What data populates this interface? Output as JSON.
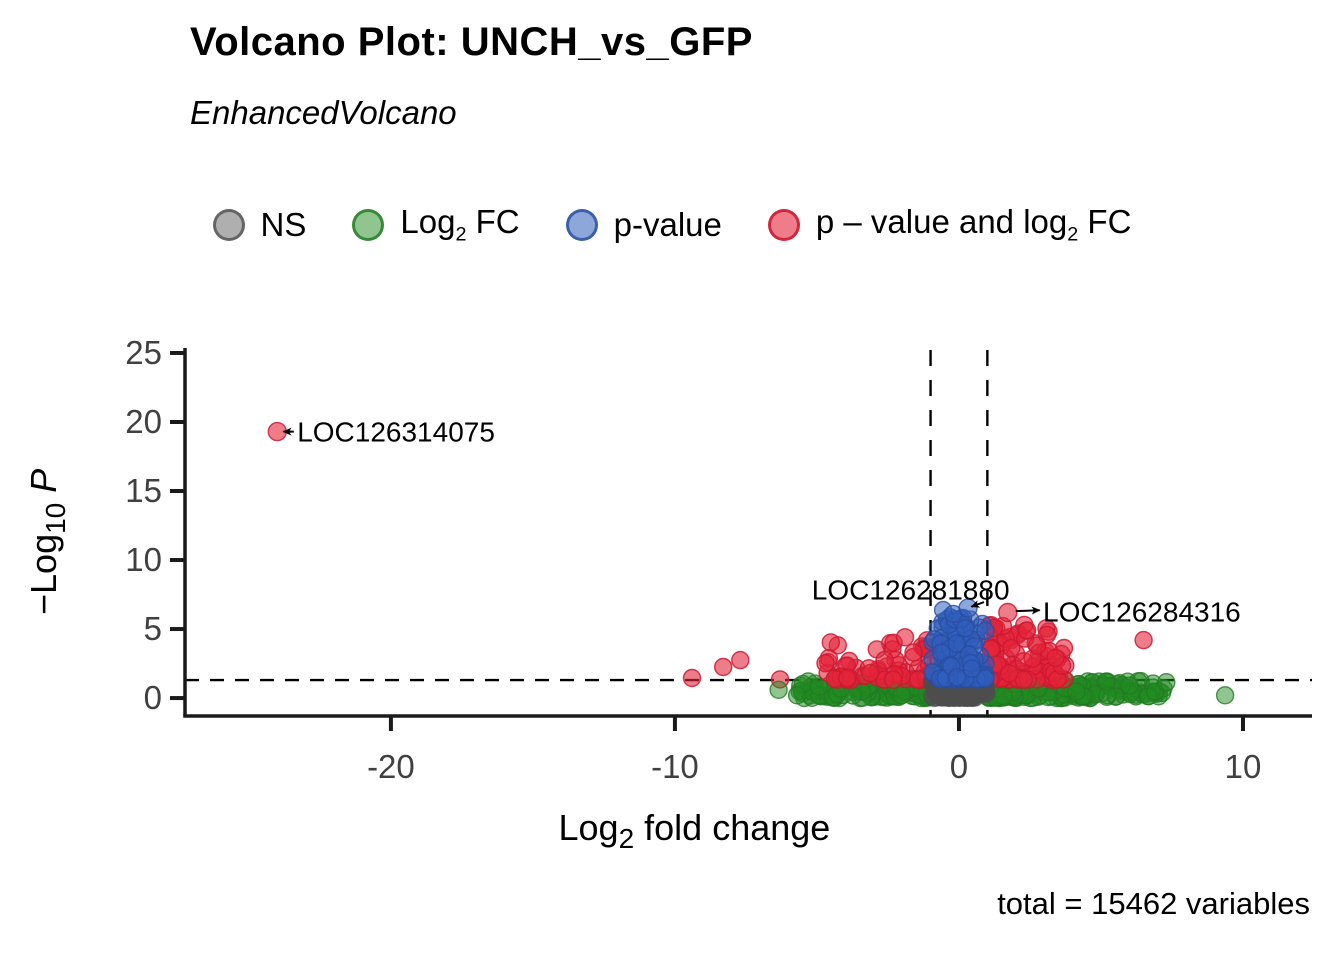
{
  "chart_data": {
    "type": "scatter",
    "variant": "volcano",
    "title": "Volcano Plot: UNCH_vs_GFP",
    "subtitle": "EnhancedVolcano",
    "caption": "total = 15462 variables",
    "xlabel_parts": [
      "Log",
      "2",
      " fold change"
    ],
    "ylabel_parts": [
      "−Log",
      "10",
      " "
    ],
    "ylabel_italic_suffix": "P",
    "xlim": [
      -27.25,
      12.43
    ],
    "ylim": [
      -1.3,
      25.36
    ],
    "x_ticks": [
      {
        "v": -20,
        "label": "-20"
      },
      {
        "v": -10,
        "label": "-10"
      },
      {
        "v": 0,
        "label": "0"
      },
      {
        "v": 10,
        "label": "10"
      }
    ],
    "y_ticks": [
      {
        "v": 0,
        "label": "0"
      },
      {
        "v": 5,
        "label": "5"
      },
      {
        "v": 10,
        "label": "10"
      },
      {
        "v": 15,
        "label": "15"
      },
      {
        "v": 20,
        "label": "20"
      },
      {
        "v": 25,
        "label": "25"
      }
    ],
    "grid": false,
    "legend_position": "top",
    "threshold_lines": {
      "hline_y": 1.301,
      "vlines_x": [
        -1,
        1
      ],
      "style": "dashed",
      "color": "#000000"
    },
    "series_colors": {
      "ns": {
        "fill": "rgba(77,77,77,0.45)",
        "stroke": "rgba(77,77,77,0.75)"
      },
      "fc": {
        "fill": "rgba(34,139,34,0.5)",
        "stroke": "rgba(34,122,34,0.8)"
      },
      "p": {
        "fill": "rgba(50,95,190,0.55)",
        "stroke": "rgba(40,78,160,0.8)"
      },
      "both": {
        "fill": "rgba(229,36,58,0.6)",
        "stroke": "rgba(203,25,48,0.85)"
      }
    },
    "legend": [
      {
        "key": "ns",
        "parts": [
          "NS"
        ]
      },
      {
        "key": "fc",
        "parts": [
          "Log",
          "2",
          " FC"
        ]
      },
      {
        "key": "p",
        "parts": [
          "p-value"
        ]
      },
      {
        "key": "both",
        "parts": [
          "p – value and log",
          "2",
          " FC"
        ]
      }
    ],
    "labeled_points": [
      {
        "label": "LOC126314075",
        "x": -24.0,
        "y": 19.3,
        "series": "both",
        "text_x": -23.3,
        "text_y": 19.3,
        "anchor": "start",
        "arrow": {
          "x1": -23.42,
          "y1": 19.3,
          "x2": -23.78,
          "y2": 19.3
        }
      },
      {
        "label": "LOC126281880",
        "x": 0.32,
        "y": 6.52,
        "series": "p",
        "text_x": -1.7,
        "text_y": 7.85,
        "anchor": "middle",
        "arrow": {
          "x1": 0.88,
          "y1": 6.95,
          "x2": 0.44,
          "y2": 6.62
        }
      },
      {
        "label": "LOC126284316",
        "x": 1.72,
        "y": 6.2,
        "series": "both",
        "text_x": 2.96,
        "text_y": 6.28,
        "anchor": "start",
        "arrow": {
          "x1": 2.0,
          "y1": 6.3,
          "x2": 2.84,
          "y2": 6.36
        }
      }
    ],
    "extra_points": [
      {
        "x": -9.4,
        "y": 1.45,
        "series": "both"
      },
      {
        "x": -8.3,
        "y": 2.25,
        "series": "both"
      },
      {
        "x": -7.7,
        "y": 2.75,
        "series": "both"
      },
      {
        "x": -6.3,
        "y": 1.35,
        "series": "both"
      },
      {
        "x": -2.3,
        "y": 4.0,
        "series": "both"
      },
      {
        "x": -1.9,
        "y": 4.4,
        "series": "both"
      },
      {
        "x": -1.6,
        "y": 3.3,
        "series": "both"
      },
      {
        "x": 2.3,
        "y": 5.3,
        "series": "both"
      },
      {
        "x": 2.4,
        "y": 4.9,
        "series": "both"
      },
      {
        "x": 2.75,
        "y": 3.8,
        "series": "both"
      },
      {
        "x": 3.4,
        "y": 2.9,
        "series": "both"
      },
      {
        "x": 6.5,
        "y": 4.2,
        "series": "both"
      },
      {
        "x": -0.56,
        "y": 6.38,
        "series": "p"
      },
      {
        "x": -0.2,
        "y": 6.1,
        "series": "p"
      },
      {
        "x": 5.2,
        "y": 1.2,
        "series": "fc"
      },
      {
        "x": 6.0,
        "y": 0.9,
        "series": "fc"
      },
      {
        "x": 7.3,
        "y": 1.15,
        "series": "fc"
      },
      {
        "x": 9.37,
        "y": 0.2,
        "series": "fc"
      },
      {
        "x": -6.35,
        "y": 0.6,
        "series": "fc"
      },
      {
        "x": -5.7,
        "y": 0.2,
        "series": "fc"
      }
    ],
    "clusters": [
      {
        "series": "fc",
        "n": 300,
        "x": {
          "type": "pow",
          "start": 1.03,
          "span": 6.2,
          "pow": 1.9
        },
        "y": {
          "type": "pow",
          "min": 0.0,
          "max": 1.24,
          "pow": 1.15
        }
      },
      {
        "series": "fc",
        "n": 170,
        "x": {
          "type": "pow",
          "start": -1.03,
          "span": -4.6,
          "pow": 1.9
        },
        "y": {
          "type": "pow",
          "min": 0.0,
          "max": 1.24,
          "pow": 1.15
        }
      },
      {
        "series": "both",
        "n": 115,
        "x": {
          "type": "pow",
          "start": 1.05,
          "span": 2.7,
          "pow": 2.0
        },
        "y": {
          "type": "pow",
          "min": 1.33,
          "max": 5.4,
          "pow": 2.2
        }
      },
      {
        "series": "both",
        "n": 72,
        "x": {
          "type": "pow",
          "start": -1.05,
          "span": -3.9,
          "pow": 2.0
        },
        "y": {
          "type": "pow",
          "min": 1.33,
          "max": 4.3,
          "pow": 2.4
        }
      },
      {
        "series": "ns",
        "n": 260,
        "x": {
          "type": "gauss",
          "center": 0,
          "sd": 0.42,
          "min": -0.95,
          "max": 0.95
        },
        "y": {
          "type": "pow",
          "min": 0.0,
          "max": 1.26,
          "pow": 1.25
        }
      },
      {
        "series": "p",
        "n": 190,
        "x": {
          "type": "gauss",
          "center": 0,
          "sd": 0.45,
          "min": -0.93,
          "max": 0.93
        },
        "y": {
          "type": "pow",
          "min": 1.36,
          "max": 5.9,
          "pow": 2.3
        }
      }
    ],
    "seed": 11
  }
}
